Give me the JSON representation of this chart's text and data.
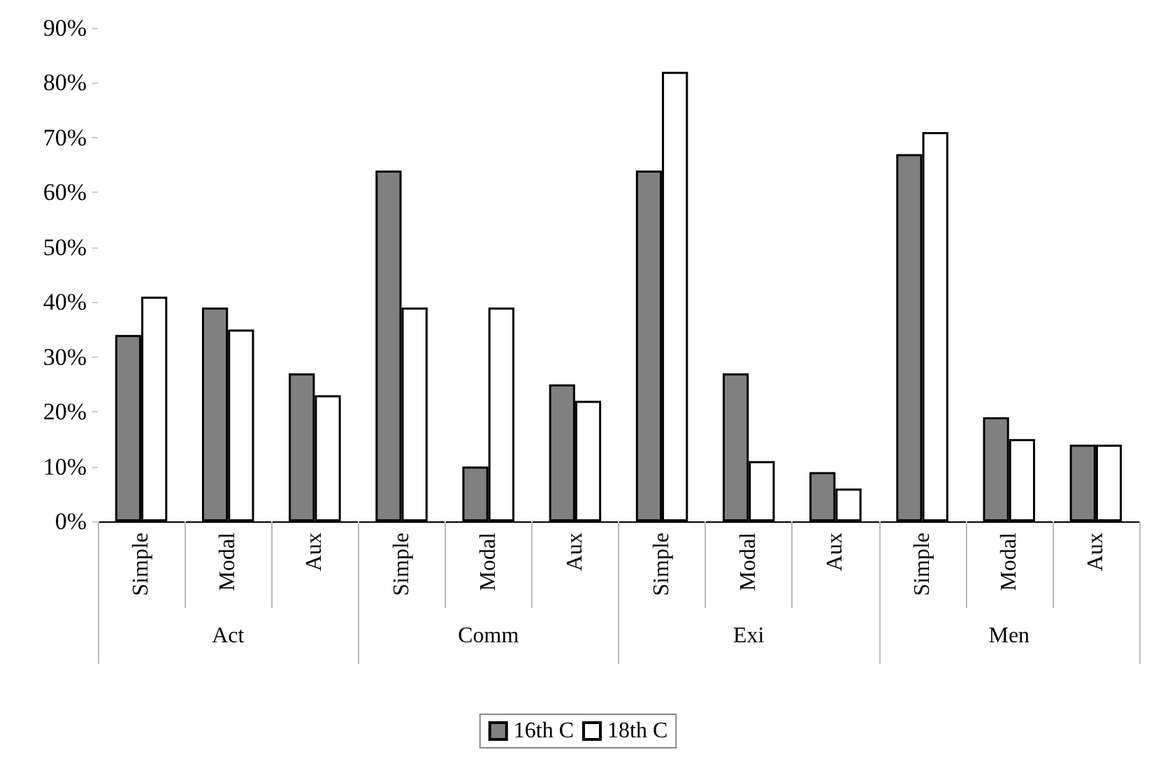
{
  "chart_data": {
    "type": "bar",
    "categories": [
      "Simple",
      "Modal",
      "Aux",
      "Simple",
      "Modal",
      "Aux",
      "Simple",
      "Modal",
      "Aux",
      "Simple",
      "Modal",
      "Aux"
    ],
    "series": [
      {
        "name": "16th C",
        "color": "#808080",
        "values": [
          0.34,
          0.39,
          0.27,
          0.64,
          0.1,
          0.25,
          0.64,
          0.27,
          0.09,
          0.67,
          0.19,
          0.14
        ]
      },
      {
        "name": "18th C",
        "color": "#ffffff",
        "values": [
          0.41,
          0.35,
          0.23,
          0.39,
          0.39,
          0.22,
          0.82,
          0.11,
          0.06,
          0.71,
          0.15,
          0.14
        ]
      }
    ],
    "annotations": [
      "Act",
      "Comm",
      "Exi",
      "Men"
    ],
    "ylim": [
      0,
      0.9
    ],
    "yticks": [
      {
        "value": 0,
        "label": "0%"
      },
      {
        "value": 0.1,
        "label": "10%"
      },
      {
        "value": 0.2,
        "label": "20%"
      },
      {
        "value": 0.3,
        "label": "30%"
      },
      {
        "value": 0.4,
        "label": "40%"
      },
      {
        "value": 0.5,
        "label": "50%"
      },
      {
        "value": 0.6,
        "label": "60%"
      },
      {
        "value": 0.7,
        "label": "70%"
      },
      {
        "value": 0.8,
        "label": "80%"
      },
      {
        "value": 0.9,
        "label": "90%"
      }
    ],
    "grid": false,
    "legend": "bottom"
  }
}
